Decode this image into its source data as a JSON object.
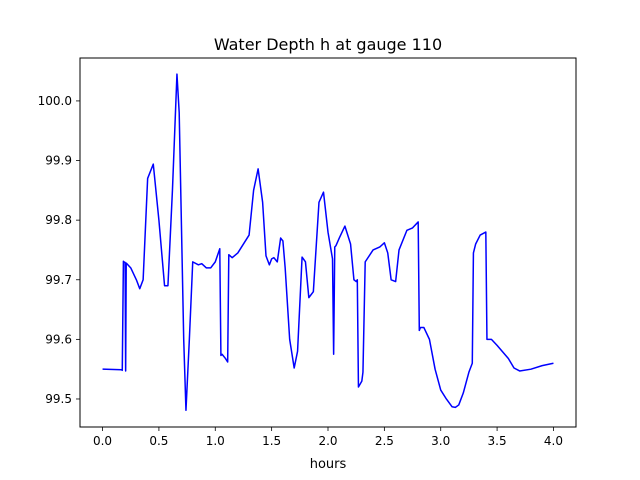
{
  "chart_data": {
    "type": "line",
    "title": "Water Depth h at gauge 110",
    "xlabel": "hours",
    "ylabel": "",
    "xlim": [
      -0.2,
      4.2
    ],
    "ylim": [
      99.453,
      100.072
    ],
    "xticks": [
      0.0,
      0.5,
      1.0,
      1.5,
      2.0,
      2.5,
      3.0,
      3.5,
      4.0
    ],
    "xtick_labels": [
      "0.0",
      "0.5",
      "1.0",
      "1.5",
      "2.0",
      "2.5",
      "3.0",
      "3.5",
      "4.0"
    ],
    "yticks": [
      99.5,
      99.6,
      99.7,
      99.8,
      99.9,
      100.0
    ],
    "ytick_labels": [
      "99.5",
      "99.6",
      "99.7",
      "99.8",
      "99.9",
      "100.0"
    ],
    "grid": false,
    "series": [
      {
        "color": "#0000ff",
        "x": [
          0.0,
          0.17,
          0.175,
          0.185,
          0.19,
          0.2,
          0.205,
          0.21,
          0.25,
          0.3,
          0.33,
          0.36,
          0.4,
          0.45,
          0.5,
          0.55,
          0.58,
          0.62,
          0.66,
          0.68,
          0.72,
          0.74,
          0.77,
          0.8,
          0.85,
          0.88,
          0.92,
          0.96,
          1.0,
          1.04,
          1.05,
          1.06,
          1.09,
          1.11,
          1.12,
          1.15,
          1.2,
          1.3,
          1.34,
          1.38,
          1.42,
          1.45,
          1.48,
          1.5,
          1.52,
          1.55,
          1.58,
          1.6,
          1.62,
          1.66,
          1.7,
          1.73,
          1.77,
          1.8,
          1.83,
          1.87,
          1.92,
          1.96,
          2.0,
          2.04,
          2.05,
          2.06,
          2.07,
          2.1,
          2.15,
          2.2,
          2.23,
          2.25,
          2.26,
          2.27,
          2.3,
          2.31,
          2.33,
          2.4,
          2.46,
          2.5,
          2.53,
          2.56,
          2.6,
          2.63,
          2.7,
          2.75,
          2.8,
          2.81,
          2.82,
          2.85,
          2.9,
          2.95,
          3.0,
          3.05,
          3.1,
          3.13,
          3.16,
          3.2,
          3.25,
          3.28,
          3.29,
          3.31,
          3.35,
          3.4,
          3.41,
          3.45,
          3.5,
          3.6,
          3.65,
          3.7,
          3.8,
          3.9,
          4.0
        ],
        "y": [
          99.55,
          99.549,
          99.548,
          99.731,
          99.73,
          99.729,
          99.547,
          99.728,
          99.72,
          99.7,
          99.685,
          99.7,
          99.87,
          99.894,
          99.8,
          99.69,
          99.69,
          99.85,
          100.045,
          99.98,
          99.6,
          99.481,
          99.6,
          99.73,
          99.725,
          99.727,
          99.72,
          99.72,
          99.73,
          99.752,
          99.573,
          99.575,
          99.568,
          99.562,
          99.742,
          99.737,
          99.745,
          99.775,
          99.85,
          99.886,
          99.83,
          99.74,
          99.725,
          99.735,
          99.737,
          99.73,
          99.77,
          99.765,
          99.72,
          99.6,
          99.552,
          99.58,
          99.738,
          99.73,
          99.67,
          99.68,
          99.83,
          99.847,
          99.78,
          99.735,
          99.575,
          99.755,
          99.757,
          99.77,
          99.79,
          99.76,
          99.7,
          99.697,
          99.7,
          99.52,
          99.53,
          99.545,
          99.73,
          99.75,
          99.755,
          99.762,
          99.745,
          99.7,
          99.697,
          99.75,
          99.783,
          99.787,
          99.797,
          99.615,
          99.62,
          99.62,
          99.6,
          99.55,
          99.515,
          99.5,
          99.487,
          99.486,
          99.49,
          99.51,
          99.545,
          99.56,
          99.745,
          99.76,
          99.775,
          99.78,
          99.6,
          99.6,
          99.59,
          99.568,
          99.552,
          99.547,
          99.55,
          99.556,
          99.56
        ]
      }
    ]
  }
}
